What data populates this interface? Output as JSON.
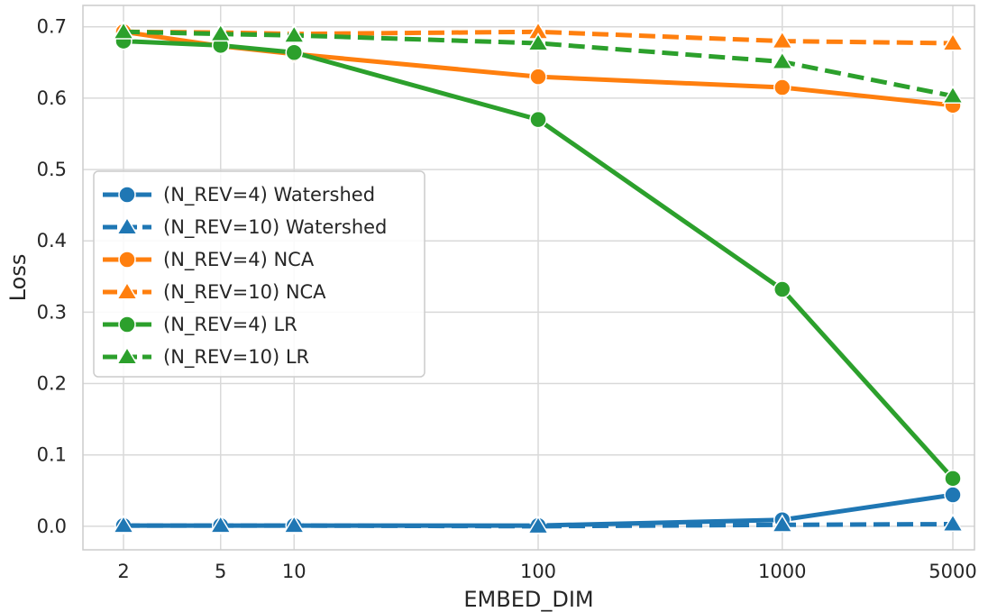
{
  "chart_data": {
    "type": "line",
    "xlabel": "EMBED_DIM",
    "ylabel": "Loss",
    "x": [
      2,
      5,
      10,
      100,
      1000,
      5000
    ],
    "x_ticks": [
      "2",
      "5",
      "10",
      "100",
      "1000",
      "5000"
    ],
    "x_scale": "log",
    "ylim": [
      -0.033,
      0.73
    ],
    "y_ticks": [
      "0.0",
      "0.1",
      "0.2",
      "0.3",
      "0.4",
      "0.5",
      "0.6",
      "0.7"
    ],
    "y_tick_values": [
      0.0,
      0.1,
      0.2,
      0.3,
      0.4,
      0.5,
      0.6,
      0.7
    ],
    "grid": true,
    "legend_position": "center-left",
    "series": [
      {
        "name": "(N_REV=4) Watershed",
        "color": "#1f77b4",
        "dash": "solid",
        "marker": "circle",
        "values": [
          0.001,
          0.001,
          0.001,
          0.001,
          0.009,
          0.044
        ]
      },
      {
        "name": "(N_REV=10) Watershed",
        "color": "#1f77b4",
        "dash": "dashed",
        "marker": "triangle",
        "values": [
          0.001,
          0.001,
          0.001,
          0.0,
          0.002,
          0.003
        ]
      },
      {
        "name": "(N_REV=4) NCA",
        "color": "#ff7f0e",
        "dash": "solid",
        "marker": "circle",
        "values": [
          0.693,
          0.673,
          0.662,
          0.63,
          0.615,
          0.59
        ]
      },
      {
        "name": "(N_REV=10) NCA",
        "color": "#ff7f0e",
        "dash": "dashed",
        "marker": "triangle",
        "values": [
          0.693,
          0.692,
          0.69,
          0.693,
          0.68,
          0.677
        ]
      },
      {
        "name": "(N_REV=4) LR",
        "color": "#2ca02c",
        "dash": "solid",
        "marker": "circle",
        "values": [
          0.68,
          0.674,
          0.664,
          0.57,
          0.332,
          0.067
        ]
      },
      {
        "name": "(N_REV=10) LR",
        "color": "#2ca02c",
        "dash": "dashed",
        "marker": "triangle",
        "values": [
          0.693,
          0.69,
          0.688,
          0.677,
          0.651,
          0.603
        ]
      }
    ]
  }
}
